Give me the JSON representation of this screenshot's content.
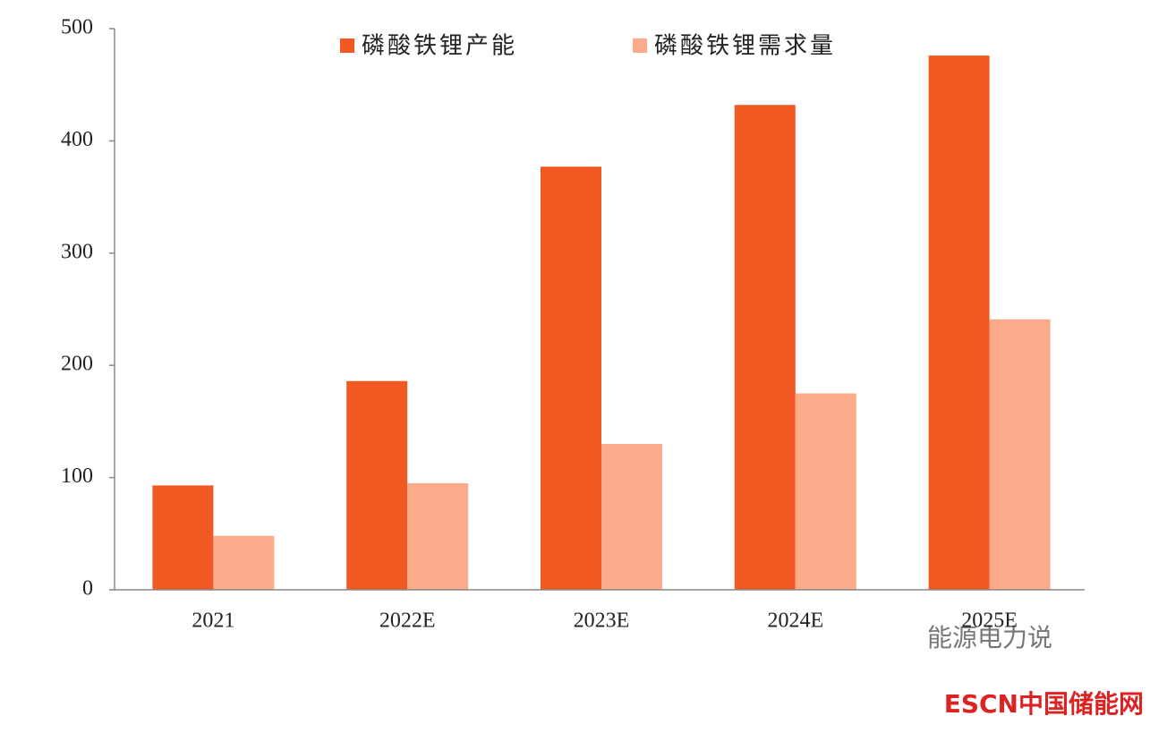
{
  "chart_data": {
    "type": "bar",
    "categories": [
      "2021",
      "2022E",
      "2023E",
      "2024E",
      "2025E"
    ],
    "series": [
      {
        "name": "磷酸铁锂产能",
        "color": "#f05a22",
        "values": [
          93,
          186,
          377,
          432,
          476
        ]
      },
      {
        "name": "磷酸铁锂需求量",
        "color": "#fbab8a",
        "values": [
          48,
          95,
          130,
          175,
          241
        ]
      }
    ],
    "ylim": [
      0,
      500
    ],
    "yticks": [
      0,
      100,
      200,
      300,
      400,
      500
    ],
    "legend": "top"
  },
  "watermarks": [
    "能源电力说",
    "ESCN中国储能网"
  ]
}
